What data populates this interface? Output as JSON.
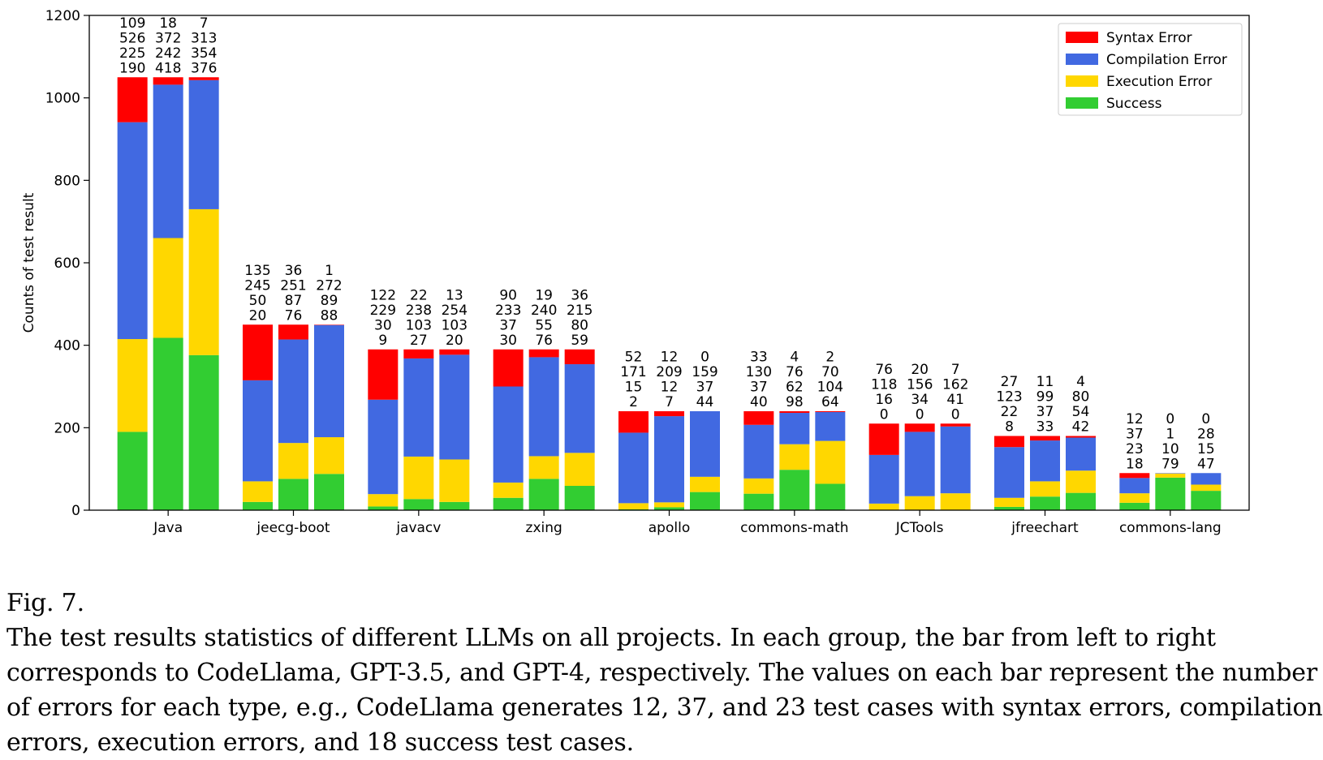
{
  "chart_data": {
    "type": "bar",
    "stacked": true,
    "ylabel": "Counts of test result",
    "ylim": [
      0,
      1200
    ],
    "yticks": [
      0,
      200,
      400,
      600,
      800,
      1000,
      1200
    ],
    "legend_position": "top-right",
    "series_names": [
      "Syntax Error",
      "Compilation Error",
      "Execution Error",
      "Success"
    ],
    "colors": [
      "#ff0000",
      "#4169e1",
      "#ffd700",
      "#32cd32"
    ],
    "models": [
      "CodeLlama",
      "GPT-3.5",
      "GPT-4"
    ],
    "groups": [
      {
        "name": "Java",
        "bars": [
          [
            109,
            526,
            225,
            190
          ],
          [
            18,
            372,
            242,
            418
          ],
          [
            7,
            313,
            354,
            376
          ]
        ]
      },
      {
        "name": "jeecg-boot",
        "bars": [
          [
            135,
            245,
            50,
            20
          ],
          [
            36,
            251,
            87,
            76
          ],
          [
            1,
            272,
            89,
            88
          ]
        ]
      },
      {
        "name": "javacv",
        "bars": [
          [
            122,
            229,
            30,
            9
          ],
          [
            22,
            238,
            103,
            27
          ],
          [
            13,
            254,
            103,
            20
          ]
        ]
      },
      {
        "name": "zxing",
        "bars": [
          [
            90,
            233,
            37,
            30
          ],
          [
            19,
            240,
            55,
            76
          ],
          [
            36,
            215,
            80,
            59
          ]
        ]
      },
      {
        "name": "apollo",
        "bars": [
          [
            52,
            171,
            15,
            2
          ],
          [
            12,
            209,
            12,
            7
          ],
          [
            0,
            159,
            37,
            44
          ]
        ]
      },
      {
        "name": "commons-math",
        "bars": [
          [
            33,
            130,
            37,
            40
          ],
          [
            4,
            76,
            62,
            98
          ],
          [
            2,
            70,
            104,
            64
          ]
        ]
      },
      {
        "name": "JCTools",
        "bars": [
          [
            76,
            118,
            16,
            0
          ],
          [
            20,
            156,
            34,
            0
          ],
          [
            7,
            162,
            41,
            0
          ]
        ]
      },
      {
        "name": "jfreechart",
        "bars": [
          [
            27,
            123,
            22,
            8
          ],
          [
            11,
            99,
            37,
            33
          ],
          [
            4,
            80,
            54,
            42
          ]
        ]
      },
      {
        "name": "commons-lang",
        "bars": [
          [
            12,
            37,
            23,
            18
          ],
          [
            0,
            1,
            10,
            79
          ],
          [
            0,
            28,
            15,
            47
          ]
        ]
      }
    ]
  },
  "caption": {
    "figure_label": "Fig. 7.",
    "lines": [
      "The test results statistics of different LLMs on all projects. In each group, the bar from left to right",
      "corresponds to CodeLlama, GPT-3.5, and GPT-4, respectively. The values on each bar represent the number",
      "of errors for each type, e.g., CodeLlama generates 12, 37, and 23 test cases with syntax errors, compilation",
      "errors, execution errors, and 18 success test cases."
    ]
  }
}
